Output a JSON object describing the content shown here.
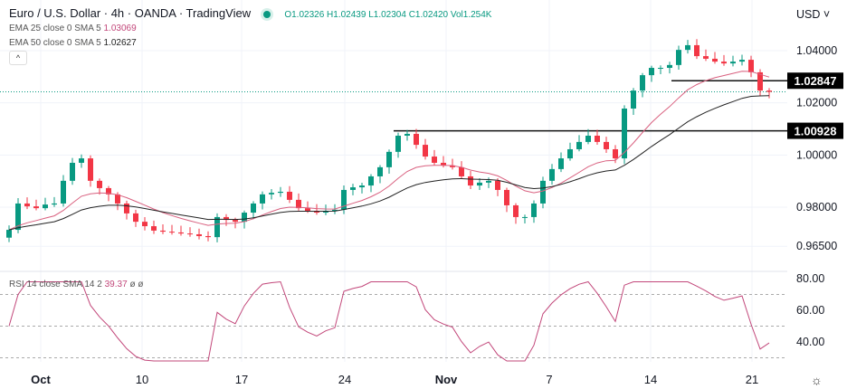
{
  "header": {
    "title": "Euro / U.S. Dollar · 4h · OANDA · TradingView",
    "ohlc": {
      "o": "O1.02326",
      "h": "H1.02439",
      "l": "L1.02304",
      "c": "C1.02420",
      "vol": "Vol1.254K"
    },
    "currency_menu": "USD ˅"
  },
  "indicators": {
    "ema25": {
      "label": "EMA 25 close 0 SMA 5",
      "value": "1.03069",
      "color": "#c2477a"
    },
    "ema50": {
      "label": "EMA 50 close 0 SMA 5",
      "value": "1.02627",
      "color": "#222222"
    },
    "rsi": {
      "label": "RSI 14 close SMA 14 2",
      "value": "39.37",
      "extra": "ø ø",
      "color": "#c2477a"
    }
  },
  "colors": {
    "up": "#089981",
    "down": "#f23645",
    "grid": "#f0f3fa"
  },
  "chart_data": [
    {
      "type": "candlestick",
      "title": "Euro / U.S. Dollar · 4h · OANDA",
      "ylim": [
        0.962,
        1.055
      ],
      "y_ticks": [
        "1.04000",
        "1.02000",
        "1.00000",
        "0.98000",
        "0.96500"
      ],
      "x_ticks": [
        "Oct",
        "10",
        "17",
        "24",
        "Nov",
        "7",
        "14",
        "21"
      ],
      "closes": [
        0.9713,
        0.9814,
        0.9803,
        0.9796,
        0.981,
        0.9814,
        0.9901,
        0.997,
        0.9987,
        0.9901,
        0.9873,
        0.9849,
        0.9814,
        0.9776,
        0.9744,
        0.9727,
        0.971,
        0.9706,
        0.9703,
        0.9699,
        0.9696,
        0.9689,
        0.9685,
        0.9762,
        0.9751,
        0.9744,
        0.9779,
        0.9814,
        0.9849,
        0.9855,
        0.9859,
        0.9828,
        0.9796,
        0.9786,
        0.9779,
        0.9786,
        0.979,
        0.9866,
        0.9876,
        0.9883,
        0.9918,
        0.9953,
        1.0012,
        1.0074,
        1.0081,
        1.0039,
        0.9994,
        0.997,
        0.996,
        0.9953,
        0.9918,
        0.9883,
        0.9894,
        0.9901,
        0.9866,
        0.9807,
        0.9762,
        0.9762,
        0.9814,
        0.9901,
        0.9946,
        0.9987,
        1.0022,
        1.005,
        1.0074,
        1.005,
        1.0022,
        0.9987,
        1.0178,
        1.0247,
        1.0306,
        1.0334,
        1.0334,
        1.0345,
        1.0403,
        1.0421,
        1.0379,
        1.0369,
        1.0358,
        1.0351,
        1.0358,
        1.0365,
        1.0317,
        1.0247,
        1.0242
      ],
      "levels": [
        {
          "value": 1.02847,
          "label": "1.02847"
        },
        {
          "value": 1.00928,
          "label": "1.00928"
        }
      ],
      "last_price": 1.0242
    },
    {
      "type": "line",
      "title": "RSI 14",
      "ylim": [
        25,
        85
      ],
      "y_ticks": [
        "80.00",
        "60.00",
        "40.00"
      ],
      "bands": [
        70,
        50,
        30
      ],
      "last_value": 39.37
    }
  ]
}
